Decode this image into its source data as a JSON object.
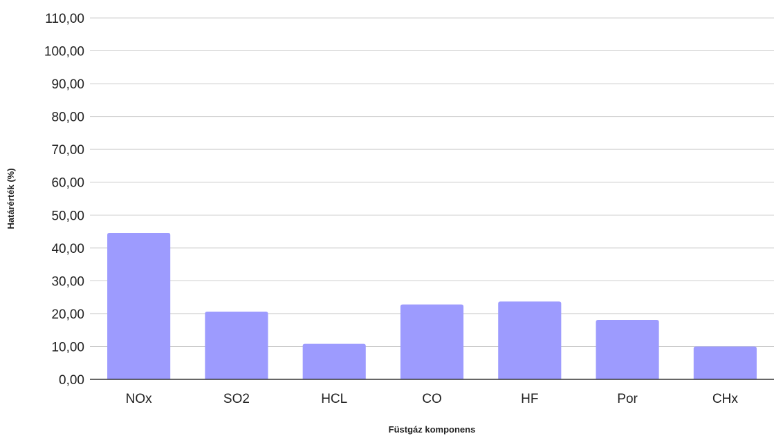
{
  "chart_data": {
    "type": "bar",
    "title": "",
    "xlabel": "Füstgáz komponens",
    "ylabel": "Határérték (%)",
    "categories": [
      "NOx",
      "SO2",
      "HCL",
      "CO",
      "HF",
      "Por",
      "CHx"
    ],
    "series": [
      {
        "values": [
          44.6,
          20.6,
          10.8,
          22.8,
          23.7,
          18.1,
          10.0
        ]
      }
    ],
    "ylim": [
      0,
      110
    ],
    "yticks": [
      0,
      10,
      20,
      30,
      40,
      50,
      60,
      70,
      80,
      90,
      100,
      110
    ],
    "ytick_labels": [
      "0,00",
      "10,00",
      "20,00",
      "30,00",
      "40,00",
      "50,00",
      "60,00",
      "70,00",
      "80,00",
      "90,00",
      "100,00",
      "110,00"
    ],
    "grid": true,
    "legend": "none",
    "colors": {
      "bar": "#9d9bfe",
      "grid": "#cccccc",
      "axis": "#333333",
      "text": "#222222"
    }
  }
}
